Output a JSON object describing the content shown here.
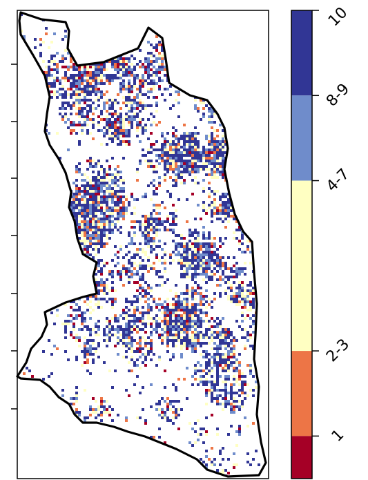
{
  "legend": {
    "classes": [
      {
        "label": "10",
        "color": "#313695",
        "share": 0.1
      },
      {
        "label": "8-9",
        "color": "#6f8ccb",
        "share": 0.1
      },
      {
        "label": "4-7",
        "color": "#ffffc2",
        "share": 0.2
      },
      {
        "label": "2-3",
        "color": "#ed7546",
        "share": 0.1
      },
      {
        "label": "1",
        "color": "#a50026",
        "share": 0.05
      }
    ]
  },
  "map": {
    "background": "#ffffff",
    "boundary_color": "#000000",
    "class_weights": [
      0.5,
      0.18,
      0.17,
      0.1,
      0.05
    ]
  }
}
